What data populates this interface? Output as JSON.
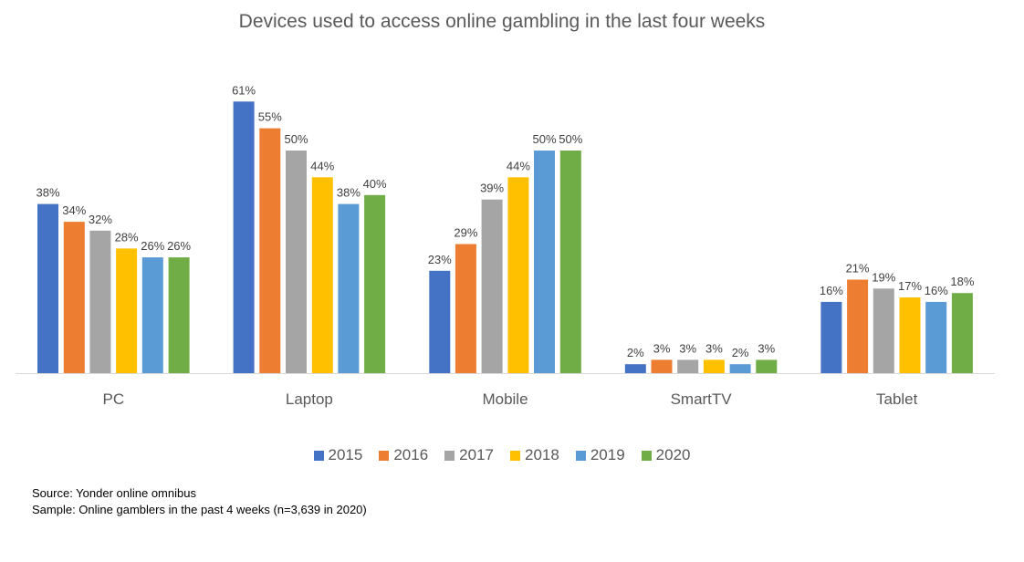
{
  "chart_data": {
    "type": "bar",
    "title": "Devices used to access online gambling in the last four weeks",
    "xlabel": "",
    "ylabel": "",
    "ylim": [
      0,
      70
    ],
    "grid": false,
    "legend_position": "bottom",
    "categories": [
      "PC",
      "Laptop",
      "Mobile",
      "SmartTV",
      "Tablet"
    ],
    "series": [
      {
        "name": "2015",
        "color": "#4472C4",
        "values": [
          38,
          61,
          23,
          2,
          16
        ]
      },
      {
        "name": "2016",
        "color": "#ED7D31",
        "values": [
          34,
          55,
          29,
          3,
          21
        ]
      },
      {
        "name": "2017",
        "color": "#A5A5A5",
        "values": [
          32,
          50,
          39,
          3,
          19
        ]
      },
      {
        "name": "2018",
        "color": "#FFC000",
        "values": [
          28,
          44,
          44,
          3,
          17
        ]
      },
      {
        "name": "2019",
        "color": "#5B9BD5",
        "values": [
          26,
          38,
          50,
          2,
          16
        ]
      },
      {
        "name": "2020",
        "color": "#70AD47",
        "values": [
          26,
          40,
          50,
          3,
          18
        ]
      }
    ],
    "value_suffix": "%"
  },
  "notes": {
    "source": "Source: Yonder online omnibus",
    "sample": "Sample: Online gamblers in the past 4 weeks (n=3,639 in 2020)"
  },
  "colors": {
    "axis_line": "#D9D9D9",
    "label_text": "#404040",
    "category_text": "#595959"
  }
}
